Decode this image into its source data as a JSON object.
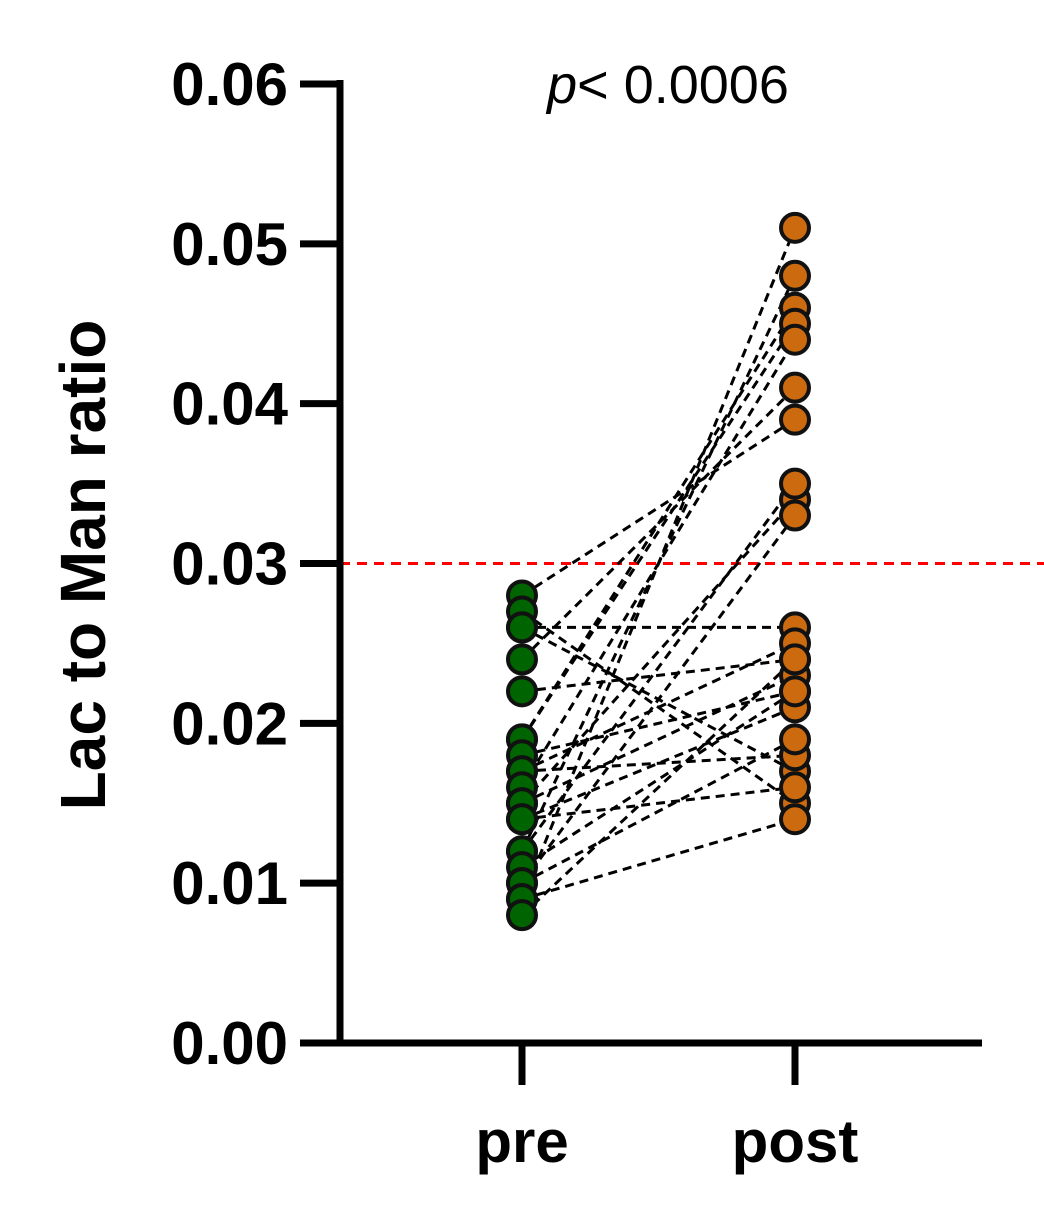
{
  "chart_data": {
    "type": "scatter",
    "subtype": "paired-dot",
    "title": "",
    "xlabel": "",
    "ylabel": "Lac to Man ratio",
    "ylim": [
      0,
      0.06
    ],
    "yticks": [
      "0.00",
      "0.01",
      "0.02",
      "0.03",
      "0.04",
      "0.05",
      "0.06"
    ],
    "categories": [
      "pre",
      "post"
    ],
    "grid": false,
    "annotation": {
      "italic": "p",
      "text": "< 0.0006"
    },
    "reference_line": {
      "y": 0.03,
      "color": "#ff0000",
      "style": "dashed"
    },
    "colors": {
      "pre": "#006400",
      "post": "#cc6a10",
      "pairs": "#000000",
      "axis": "#000000"
    },
    "pairs": [
      {
        "pre": 0.028,
        "post": 0.039
      },
      {
        "pre": 0.027,
        "post": 0.015
      },
      {
        "pre": 0.026,
        "post": 0.026
      },
      {
        "pre": 0.026,
        "post": 0.017
      },
      {
        "pre": 0.024,
        "post": 0.041
      },
      {
        "pre": 0.022,
        "post": 0.024
      },
      {
        "pre": 0.019,
        "post": 0.046
      },
      {
        "pre": 0.019,
        "post": 0.045
      },
      {
        "pre": 0.018,
        "post": 0.022
      },
      {
        "pre": 0.017,
        "post": 0.025
      },
      {
        "pre": 0.017,
        "post": 0.018
      },
      {
        "pre": 0.016,
        "post": 0.044
      },
      {
        "pre": 0.015,
        "post": 0.034
      },
      {
        "pre": 0.015,
        "post": 0.023
      },
      {
        "pre": 0.014,
        "post": 0.021
      },
      {
        "pre": 0.014,
        "post": 0.016
      },
      {
        "pre": 0.012,
        "post": 0.048
      },
      {
        "pre": 0.012,
        "post": 0.035
      },
      {
        "pre": 0.011,
        "post": 0.022
      },
      {
        "pre": 0.01,
        "post": 0.033
      },
      {
        "pre": 0.01,
        "post": 0.019
      },
      {
        "pre": 0.009,
        "post": 0.051
      },
      {
        "pre": 0.009,
        "post": 0.014
      },
      {
        "pre": 0.008,
        "post": 0.024
      }
    ]
  }
}
